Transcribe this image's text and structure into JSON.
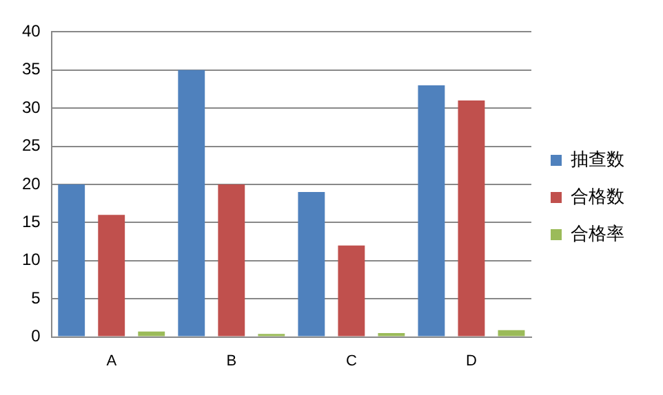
{
  "chart_data": {
    "type": "bar",
    "categories": [
      "A",
      "B",
      "C",
      "D"
    ],
    "series": [
      {
        "name": "抽查数",
        "color": "#4f81bd",
        "values": [
          20,
          35,
          19,
          33
        ]
      },
      {
        "name": "合格数",
        "color": "#c0504d",
        "values": [
          16,
          20,
          12,
          31
        ]
      },
      {
        "name": "合格率",
        "color": "#9bbb59",
        "values": [
          0.7,
          0.4,
          0.5,
          0.9
        ]
      }
    ],
    "ylim": [
      0,
      40
    ],
    "yticks": [
      0,
      5,
      10,
      15,
      20,
      25,
      30,
      35,
      40
    ],
    "grid": "y",
    "legend": "right"
  }
}
